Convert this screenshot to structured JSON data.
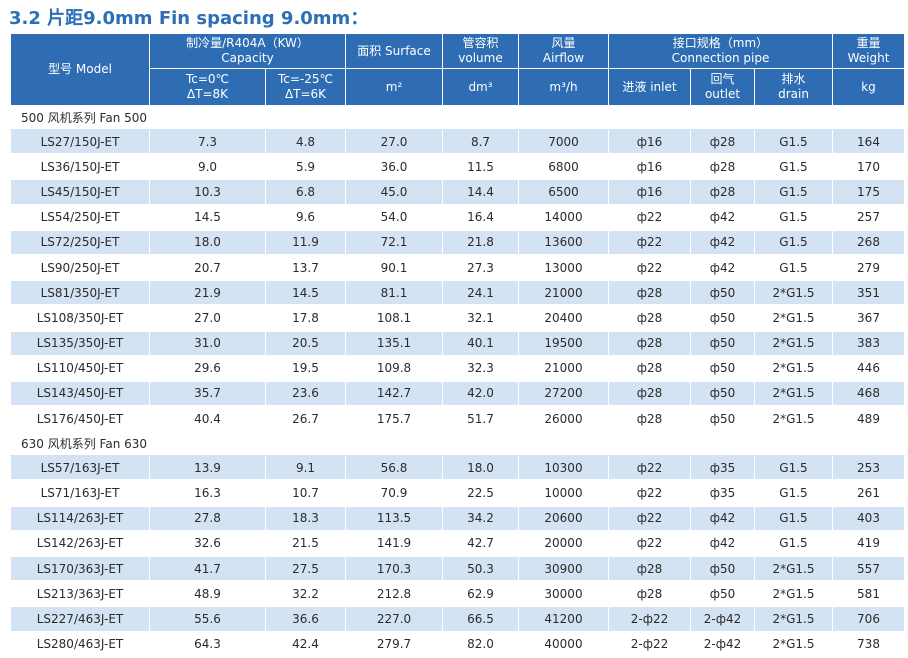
{
  "title": "3.2 片距9.0mm  Fin spacing 9.0mm：",
  "headers": {
    "model": "型号 Model",
    "capacity_top": "制冷量/R404A（KW）",
    "capacity_bottom": "Capacity",
    "tc0_line1": "Tc=0℃",
    "tc0_line2": "ΔT=8K",
    "tc25_line1": "Tc=-25℃",
    "tc25_line2": "ΔT=6K",
    "surface": "面积 Surface",
    "surface_unit": "m²",
    "volume_line1": "管容积",
    "volume_line2": "volume",
    "volume_unit": "dm³",
    "airflow_line1": "风量",
    "airflow_line2": "Airflow",
    "airflow_unit": "m³/h",
    "conn_line1": "接口规格（mm）",
    "conn_line2": "Connection pipe",
    "inlet": "进液 inlet",
    "outlet_line1": "回气",
    "outlet_line2": "outlet",
    "drain_line1": "排水",
    "drain_line2": "drain",
    "weight_line1": "重量",
    "weight_line2": "Weight",
    "weight_unit": "kg"
  },
  "groups": [
    {
      "label": "500 风机系列   Fan 500",
      "rows": [
        [
          "LS27/150J-ET",
          "7.3",
          "4.8",
          "27.0",
          "8.7",
          "7000",
          "ф16",
          "ф28",
          "G1.5",
          "164"
        ],
        [
          "LS36/150J-ET",
          "9.0",
          "5.9",
          "36.0",
          "11.5",
          "6800",
          "ф16",
          "ф28",
          "G1.5",
          "170"
        ],
        [
          "LS45/150J-ET",
          "10.3",
          "6.8",
          "45.0",
          "14.4",
          "6500",
          "ф16",
          "ф28",
          "G1.5",
          "175"
        ],
        [
          "LS54/250J-ET",
          "14.5",
          "9.6",
          "54.0",
          "16.4",
          "14000",
          "ф22",
          "ф42",
          "G1.5",
          "257"
        ],
        [
          "LS72/250J-ET",
          "18.0",
          "11.9",
          "72.1",
          "21.8",
          "13600",
          "ф22",
          "ф42",
          "G1.5",
          "268"
        ],
        [
          "LS90/250J-ET",
          "20.7",
          "13.7",
          "90.1",
          "27.3",
          "13000",
          "ф22",
          "ф42",
          "G1.5",
          "279"
        ],
        [
          "LS81/350J-ET",
          "21.9",
          "14.5",
          "81.1",
          "24.1",
          "21000",
          "ф28",
          "ф50",
          "2*G1.5",
          "351"
        ],
        [
          "LS108/350J-ET",
          "27.0",
          "17.8",
          "108.1",
          "32.1",
          "20400",
          "ф28",
          "ф50",
          "2*G1.5",
          "367"
        ],
        [
          "LS135/350J-ET",
          "31.0",
          "20.5",
          "135.1",
          "40.1",
          "19500",
          "ф28",
          "ф50",
          "2*G1.5",
          "383"
        ],
        [
          "LS110/450J-ET",
          "29.6",
          "19.5",
          "109.8",
          "32.3",
          "21000",
          "ф28",
          "ф50",
          "2*G1.5",
          "446"
        ],
        [
          "LS143/450J-ET",
          "35.7",
          "23.6",
          "142.7",
          "42.0",
          "27200",
          "ф28",
          "ф50",
          "2*G1.5",
          "468"
        ],
        [
          "LS176/450J-ET",
          "40.4",
          "26.7",
          "175.7",
          "51.7",
          "26000",
          "ф28",
          "ф50",
          "2*G1.5",
          "489"
        ]
      ]
    },
    {
      "label": "630 风机系列   Fan 630",
      "rows": [
        [
          "LS57/163J-ET",
          "13.9",
          "9.1",
          "56.8",
          "18.0",
          "10300",
          "ф22",
          "ф35",
          "G1.5",
          "253"
        ],
        [
          "LS71/163J-ET",
          "16.3",
          "10.7",
          "70.9",
          "22.5",
          "10000",
          "ф22",
          "ф35",
          "G1.5",
          "261"
        ],
        [
          "LS114/263J-ET",
          "27.8",
          "18.3",
          "113.5",
          "34.2",
          "20600",
          "ф22",
          "ф42",
          "G1.5",
          "403"
        ],
        [
          "LS142/263J-ET",
          "32.6",
          "21.5",
          "141.9",
          "42.7",
          "20000",
          "ф22",
          "ф42",
          "G1.5",
          "419"
        ],
        [
          "LS170/363J-ET",
          "41.7",
          "27.5",
          "170.3",
          "50.3",
          "30900",
          "ф28",
          "ф50",
          "2*G1.5",
          "557"
        ],
        [
          "LS213/363J-ET",
          "48.9",
          "32.2",
          "212.8",
          "62.9",
          "30000",
          "ф28",
          "ф50",
          "2*G1.5",
          "581"
        ],
        [
          "LS227/463J-ET",
          "55.6",
          "36.6",
          "227.0",
          "66.5",
          "41200",
          "2-ф22",
          "2-ф42",
          "2*G1.5",
          "706"
        ],
        [
          "LS280/463J-ET",
          "64.3",
          "42.4",
          "279.7",
          "82.0",
          "40000",
          "2-ф22",
          "2-ф42",
          "2*G1.5",
          "738"
        ]
      ]
    }
  ],
  "colors": {
    "title": "#2c6fb6",
    "header_bg": "#2e6db4",
    "stripe": "#d4e3f3"
  }
}
